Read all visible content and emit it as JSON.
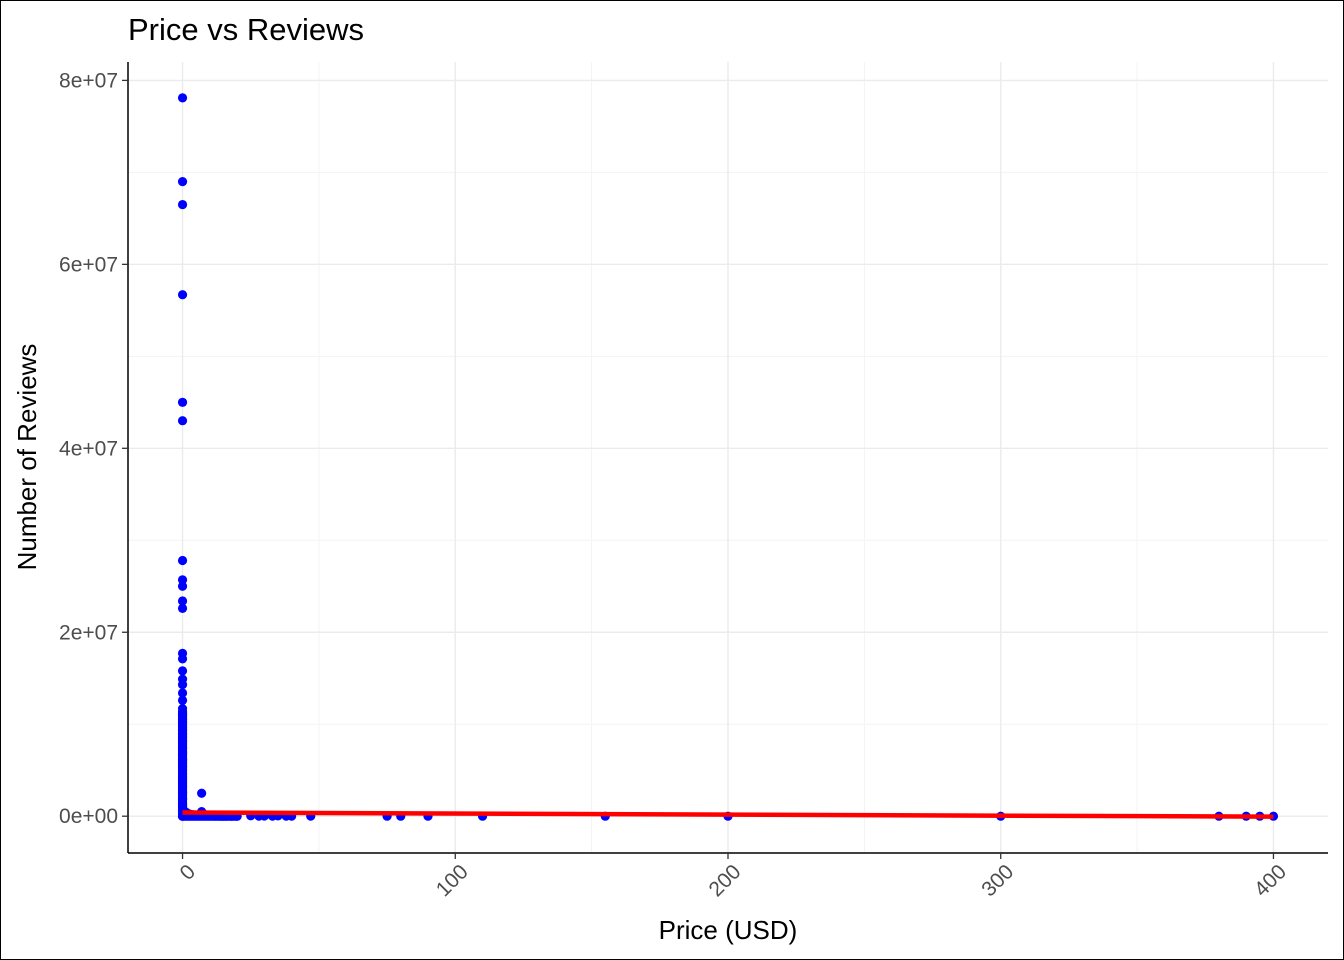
{
  "chart_data": {
    "type": "scatter",
    "title": "Price vs Reviews",
    "xlabel": "Price (USD)",
    "ylabel": "Number of Reviews",
    "xlim": [
      -20,
      420
    ],
    "ylim": [
      -4000000,
      82000000
    ],
    "x_ticks": [
      0,
      100,
      200,
      300,
      400
    ],
    "x_tick_labels": [
      "0",
      "100",
      "200",
      "300",
      "400"
    ],
    "y_ticks": [
      0,
      20000000,
      40000000,
      60000000,
      80000000
    ],
    "y_tick_labels": [
      "0e+00",
      "2e+07",
      "4e+07",
      "6e+07",
      "8e+07"
    ],
    "grid": true,
    "point_color": "#0000ff",
    "line_color": "#ff0000",
    "points": [
      [
        0,
        78100000
      ],
      [
        0,
        69000000
      ],
      [
        0,
        66500000
      ],
      [
        0,
        56700000
      ],
      [
        0,
        45000000
      ],
      [
        0,
        43000000
      ],
      [
        0,
        27800000
      ],
      [
        0,
        25700000
      ],
      [
        0,
        25000000
      ],
      [
        0,
        23400000
      ],
      [
        0,
        22600000
      ],
      [
        0,
        17700000
      ],
      [
        0,
        17100000
      ],
      [
        0,
        15800000
      ],
      [
        0,
        14900000
      ],
      [
        0,
        14300000
      ],
      [
        0,
        13400000
      ],
      [
        0,
        12600000
      ],
      [
        0,
        11700000
      ],
      [
        0,
        11000000
      ],
      [
        0,
        10300000
      ],
      [
        0,
        9600000
      ],
      [
        0,
        8900000
      ],
      [
        0,
        8200000
      ],
      [
        0,
        7500000
      ],
      [
        0,
        6800000
      ],
      [
        0,
        6100000
      ],
      [
        0,
        5400000
      ],
      [
        0,
        4700000
      ],
      [
        0,
        4000000
      ],
      [
        0,
        3300000
      ],
      [
        0,
        2600000
      ],
      [
        0,
        1900000
      ],
      [
        0,
        1200000
      ],
      [
        0,
        600000
      ],
      [
        0,
        0
      ],
      [
        1,
        500000
      ],
      [
        2,
        300000
      ],
      [
        3,
        200000
      ],
      [
        4,
        150000
      ],
      [
        5,
        100000
      ],
      [
        6,
        80000
      ],
      [
        7,
        2500000
      ],
      [
        7,
        500000
      ],
      [
        8,
        200000
      ],
      [
        9,
        100000
      ],
      [
        10,
        50000
      ],
      [
        11,
        30000
      ],
      [
        12,
        20000
      ],
      [
        13,
        15000
      ],
      [
        14,
        10000
      ],
      [
        15,
        8000
      ],
      [
        16,
        5000
      ],
      [
        18,
        3000
      ],
      [
        20,
        2000
      ],
      [
        25,
        50000
      ],
      [
        28,
        10000
      ],
      [
        30,
        20000
      ],
      [
        33,
        5000
      ],
      [
        35,
        30000
      ],
      [
        38,
        10000
      ],
      [
        40,
        5000
      ],
      [
        47,
        3000
      ],
      [
        75,
        2000
      ],
      [
        80,
        1000
      ],
      [
        90,
        1000
      ],
      [
        110,
        500
      ],
      [
        155,
        300
      ],
      [
        200,
        300
      ],
      [
        300,
        100
      ],
      [
        380,
        100
      ],
      [
        390,
        200
      ],
      [
        395,
        100
      ],
      [
        400,
        100
      ]
    ],
    "trend_line": {
      "x": [
        0,
        400
      ],
      "y": [
        400000,
        -50000
      ]
    }
  }
}
